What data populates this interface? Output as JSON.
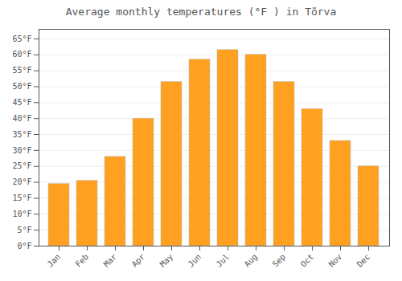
{
  "chart_data": {
    "type": "bar",
    "title": "Average monthly temperatures (°F ) in Tõrva",
    "categories": [
      "Jan",
      "Feb",
      "Mar",
      "Apr",
      "May",
      "Jun",
      "Jul",
      "Aug",
      "Sep",
      "Oct",
      "Nov",
      "Dec"
    ],
    "values": [
      19.5,
      20.5,
      28,
      40,
      51.5,
      58.5,
      61.5,
      60,
      51.5,
      43,
      33,
      25
    ],
    "color": "#FFA020",
    "ylim": [
      0,
      68
    ],
    "yticks": [
      {
        "value": 0,
        "label": "0°F"
      },
      {
        "value": 5,
        "label": "5°F"
      },
      {
        "value": 10,
        "label": "10°F"
      },
      {
        "value": 15,
        "label": "15°F"
      },
      {
        "value": 20,
        "label": "20°F"
      },
      {
        "value": 25,
        "label": "25°F"
      },
      {
        "value": 30,
        "label": "30°F"
      },
      {
        "value": 35,
        "label": "35°F"
      },
      {
        "value": 40,
        "label": "40°F"
      },
      {
        "value": 45,
        "label": "45°F"
      },
      {
        "value": 50,
        "label": "50°F"
      },
      {
        "value": 55,
        "label": "55°F"
      },
      {
        "value": 60,
        "label": "60°F"
      },
      {
        "value": 65,
        "label": "65°F"
      }
    ],
    "grid": true
  }
}
